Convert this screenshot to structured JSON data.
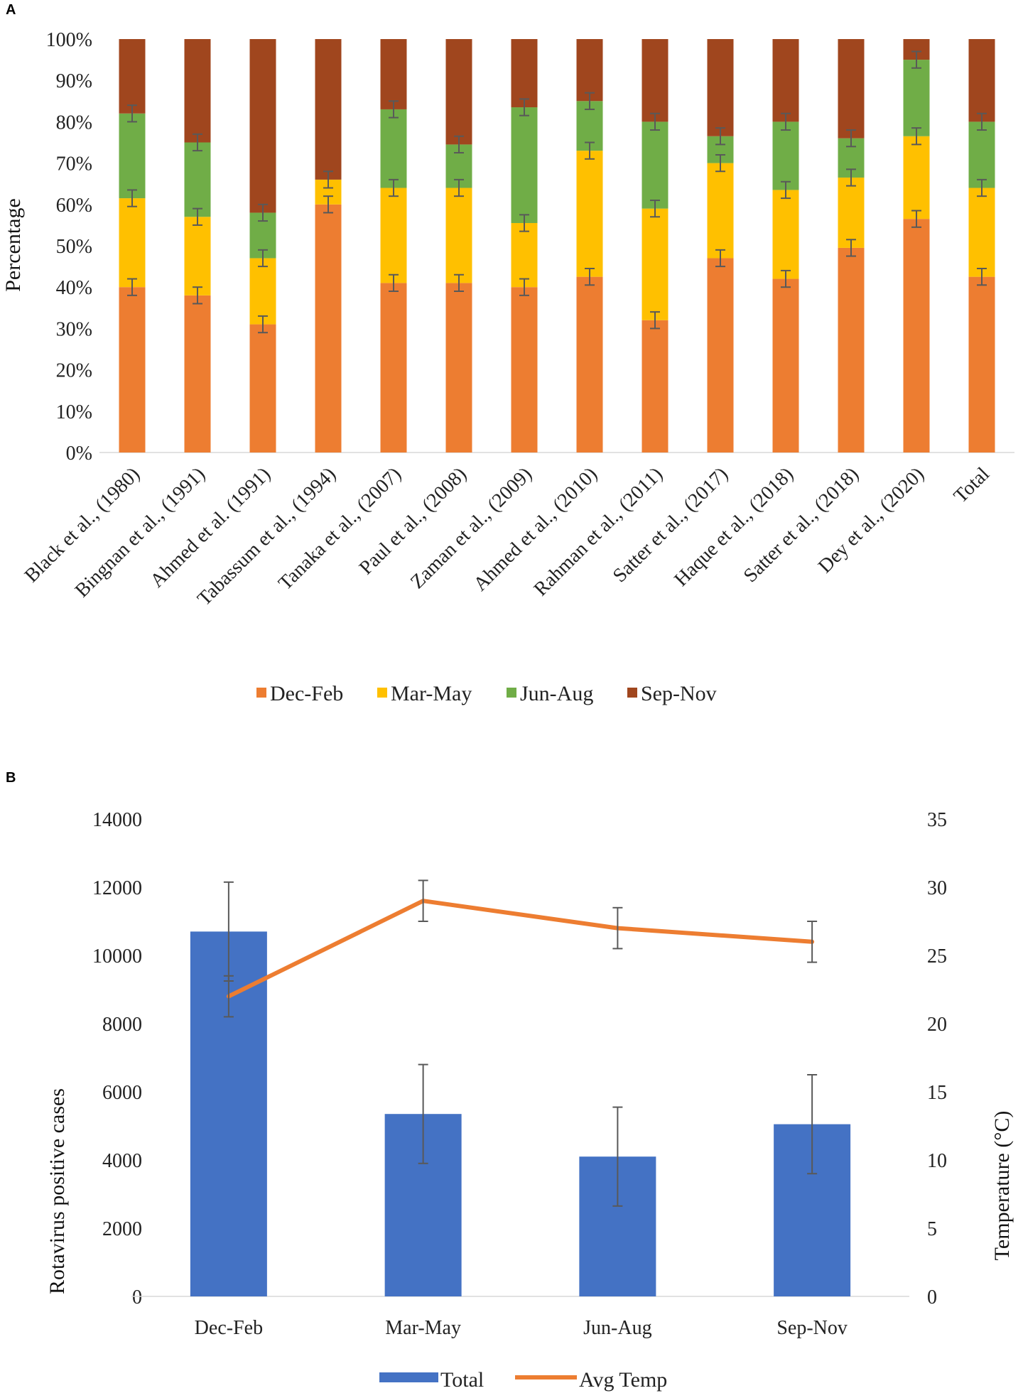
{
  "chart_data": [
    {
      "panel": "A",
      "type": "bar",
      "stacked": "percent",
      "ylabel": "Percentage",
      "ylim": [
        0,
        100
      ],
      "yticks": [
        "0%",
        "10%",
        "20%",
        "30%",
        "40%",
        "50%",
        "60%",
        "70%",
        "80%",
        "90%",
        "100%"
      ],
      "categories": [
        "Black et al., (1980)",
        "Bingnan et al., (1991)",
        "Ahmed et al. (1991)",
        "Tabassum et al., (1994)",
        "Tanaka et al., (2007)",
        "Paul et al., (2008)",
        "Zaman et al., (2009)",
        "Ahmed et al., (2010)",
        "Rahman et al., (2011)",
        "Satter et al., (2017)",
        "Haque et al., (2018)",
        "Satter et al., (2018)",
        "Dey et al., (2020)",
        "Total"
      ],
      "series": [
        {
          "name": "Dec-Feb",
          "color": "#ED7D31",
          "values": [
            40,
            38,
            31,
            60,
            41,
            41,
            40,
            42.5,
            32,
            47,
            42,
            49.5,
            56.5,
            42.5
          ]
        },
        {
          "name": "Mar-May",
          "color": "#FFC000",
          "values": [
            21.5,
            19,
            16,
            6,
            23,
            23,
            15.5,
            30.5,
            27,
            23,
            21.5,
            17,
            20,
            21.5
          ]
        },
        {
          "name": "Jun-Aug",
          "color": "#70AD47",
          "values": [
            20.5,
            18,
            11,
            0,
            19,
            10.5,
            28,
            12,
            21,
            6.5,
            16.5,
            9.5,
            18.5,
            16
          ]
        },
        {
          "name": "Sep-Nov",
          "color": "#A0461E",
          "values": [
            18,
            25,
            42,
            34,
            17,
            25.5,
            16.5,
            15,
            20,
            23.5,
            20,
            24,
            5,
            20
          ]
        }
      ],
      "error_bar": 2,
      "legend_position": "bottom"
    },
    {
      "panel": "B",
      "type": "bar",
      "categories": [
        "Dec-Feb",
        "Mar-May",
        "Jun-Aug",
        "Sep-Nov"
      ],
      "ylabel": "Rotavirus positive cases",
      "y2label": "Temperature (°C)",
      "ylim": [
        0,
        14000
      ],
      "y2lim": [
        0,
        35
      ],
      "yticks": [
        "0",
        "2000",
        "4000",
        "6000",
        "8000",
        "10000",
        "12000",
        "14000"
      ],
      "y2ticks": [
        "0",
        "5",
        "10",
        "15",
        "20",
        "25",
        "30",
        "35"
      ],
      "series": [
        {
          "name": "Total",
          "type": "bar",
          "axis": "left",
          "color": "#4472C4",
          "values": [
            10700,
            5350,
            4100,
            5050
          ],
          "error": 1450
        },
        {
          "name": "Avg Temp",
          "type": "line",
          "axis": "right",
          "color": "#ED7D31",
          "values": [
            22,
            29,
            27,
            26
          ],
          "error": 1.5
        }
      ],
      "legend_position": "bottom"
    }
  ]
}
